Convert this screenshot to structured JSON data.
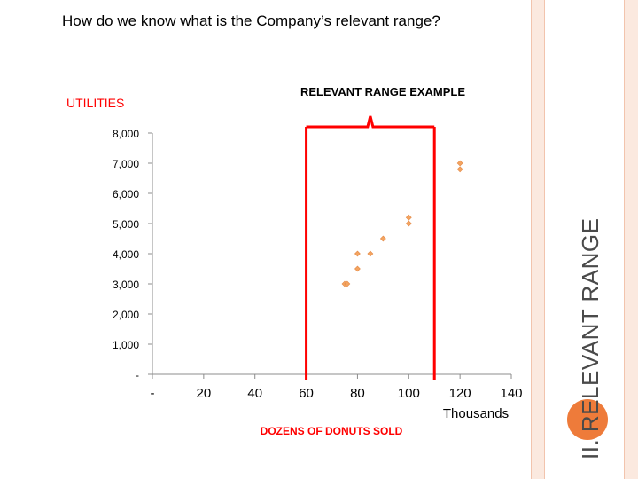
{
  "slide": {
    "heading": "How do we know what is the Company’s relevant range?",
    "side_title": "II.  RELEVANT RANGE"
  },
  "colors": {
    "points": "#f4a460",
    "bracket": "#ff0000",
    "frame": "#fbe9df",
    "accent_dot": "#ee7b3a"
  },
  "chart_data": {
    "type": "scatter",
    "title": "RELEVANT RANGE EXAMPLE",
    "ylabel": "UTILITIES",
    "xlabel": "DOZENS OF DONUTS SOLD",
    "x_unit_label": "Thousands",
    "xlim": [
      0,
      140
    ],
    "ylim": [
      0,
      8000
    ],
    "x_ticks": [
      {
        "v": 0,
        "label": "-"
      },
      {
        "v": 20,
        "label": "20"
      },
      {
        "v": 40,
        "label": "40"
      },
      {
        "v": 60,
        "label": "60"
      },
      {
        "v": 80,
        "label": "80"
      },
      {
        "v": 100,
        "label": "100"
      },
      {
        "v": 120,
        "label": "120"
      },
      {
        "v": 140,
        "label": "140"
      }
    ],
    "y_ticks": [
      {
        "v": 0,
        "label": "-"
      },
      {
        "v": 1000,
        "label": "1,000"
      },
      {
        "v": 2000,
        "label": "2,000"
      },
      {
        "v": 3000,
        "label": "3,000"
      },
      {
        "v": 4000,
        "label": "4,000"
      },
      {
        "v": 5000,
        "label": "5,000"
      },
      {
        "v": 6000,
        "label": "6,000"
      },
      {
        "v": 7000,
        "label": "7,000"
      },
      {
        "v": 8000,
        "label": "8,000"
      }
    ],
    "points": [
      {
        "x": 75,
        "y": 3000
      },
      {
        "x": 76,
        "y": 3000
      },
      {
        "x": 80,
        "y": 3500
      },
      {
        "x": 80,
        "y": 4000
      },
      {
        "x": 85,
        "y": 4000
      },
      {
        "x": 90,
        "y": 4500
      },
      {
        "x": 100,
        "y": 5000
      },
      {
        "x": 100,
        "y": 5200
      },
      {
        "x": 120,
        "y": 6800
      },
      {
        "x": 120,
        "y": 7000
      }
    ],
    "relevant_range": {
      "start": 60,
      "end": 110
    }
  }
}
